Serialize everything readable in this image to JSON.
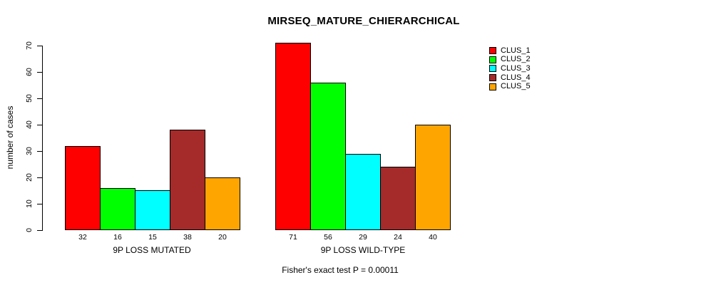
{
  "chart_data": {
    "type": "bar",
    "title": "MIRSEQ_MATURE_CHIERARCHICAL",
    "ylabel": "number of cases",
    "xlabel": "",
    "ylim": [
      0,
      70
    ],
    "yticks": [
      0,
      10,
      20,
      30,
      40,
      50,
      60,
      70
    ],
    "grid": false,
    "legend_position": "top-right",
    "bar_border_color": "#000000",
    "background_color": "#ffffff",
    "series": [
      {
        "name": "CLUS_1",
        "color": "#FF0000"
      },
      {
        "name": "CLUS_2",
        "color": "#00FF00"
      },
      {
        "name": "CLUS_3",
        "color": "#00FFFF"
      },
      {
        "name": "CLUS_4",
        "color": "#A52A2A"
      },
      {
        "name": "CLUS_5",
        "color": "#FFA500"
      }
    ],
    "groups": [
      {
        "label": "9P LOSS MUTATED",
        "values": [
          32,
          16,
          15,
          38,
          20
        ]
      },
      {
        "label": "9P LOSS WILD-TYPE",
        "values": [
          71,
          56,
          29,
          24,
          40
        ]
      }
    ],
    "bar_value_labels": [
      [
        32,
        16,
        15,
        38,
        20
      ],
      [
        71,
        56,
        29,
        24,
        40
      ]
    ],
    "annotation": "Fisher's exact test P = 0.00011"
  }
}
